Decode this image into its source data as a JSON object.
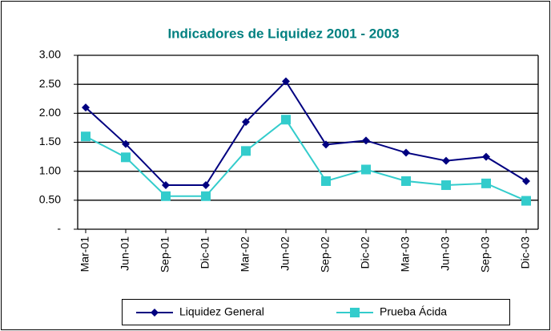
{
  "chart_data": {
    "type": "line",
    "title": "Indicadores de Liquidez 2001 - 2003",
    "categories": [
      "Mar-01",
      "Jun-01",
      "Sep-01",
      "Dic-01",
      "Mar-02",
      "Jun-02",
      "Sep-02",
      "Dic-02",
      "Mar-03",
      "Jun-03",
      "Sep-03",
      "Dic-03"
    ],
    "series": [
      {
        "name": "Liquidez General",
        "color": "#000080",
        "marker": "diamond",
        "values": [
          2.1,
          1.47,
          0.76,
          0.76,
          1.85,
          2.55,
          1.46,
          1.53,
          1.32,
          1.18,
          1.25,
          0.83
        ]
      },
      {
        "name": "Prueba Ácida",
        "color": "#33cccc",
        "marker": "square",
        "values": [
          1.6,
          1.24,
          0.57,
          0.57,
          1.35,
          1.89,
          0.83,
          1.03,
          0.83,
          0.76,
          0.79,
          0.49
        ]
      }
    ],
    "ylim": [
      0,
      3
    ],
    "yticks": [
      {
        "value": 0,
        "label": "-"
      },
      {
        "value": 0.5,
        "label": "0.50"
      },
      {
        "value": 1,
        "label": "1.00"
      },
      {
        "value": 1.5,
        "label": "1.50"
      },
      {
        "value": 2,
        "label": "2.00"
      },
      {
        "value": 2.5,
        "label": "2.50"
      },
      {
        "value": 3,
        "label": "3.00"
      }
    ],
    "grid": true,
    "legend": "bottom"
  }
}
